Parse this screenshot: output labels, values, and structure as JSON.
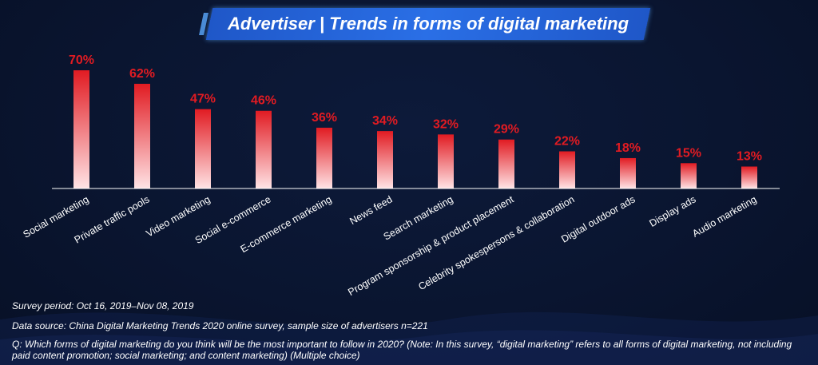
{
  "title": "Advertiser | Trends in forms of digital marketing",
  "footer": {
    "period": "Survey period: Oct 16, 2019–Nov 08, 2019",
    "source": "Data source: China Digital Marketing Trends 2020 online survey, sample size of advertisers n=221",
    "question": "Q: Which forms of digital marketing do you think will be the most important to follow in 2020? (Note: In this survey, “digital marketing” refers to all forms of digital marketing, not including paid content promotion; social marketing; and content marketing) (Multiple choice)"
  },
  "colors": {
    "background": "#0a1530",
    "title_banner": "#2a6fe6",
    "bar_top": "#e11b22",
    "bar_bottom": "#ffe3e5",
    "value_label": "#e11b22",
    "text": "#ffffff"
  },
  "chart_data": {
    "type": "bar",
    "categories": [
      "Social marketing",
      "Private traffic pools",
      "Video marketing",
      "Social e-commerce",
      "E-commerce marketing",
      "News feed",
      "Search marketing",
      "Program sponsorship & product placement",
      "Celebrity spokespersons & collaboration",
      "Digital outdoor ads",
      "Display ads",
      "Audio marketing"
    ],
    "values": [
      70,
      62,
      47,
      46,
      36,
      34,
      32,
      29,
      22,
      18,
      15,
      13
    ],
    "value_labels": [
      "70%",
      "62%",
      "47%",
      "46%",
      "36%",
      "34%",
      "32%",
      "29%",
      "22%",
      "18%",
      "15%",
      "13%"
    ],
    "unit": "%",
    "ylim": [
      0,
      70
    ],
    "grid": false,
    "legend": "none"
  }
}
